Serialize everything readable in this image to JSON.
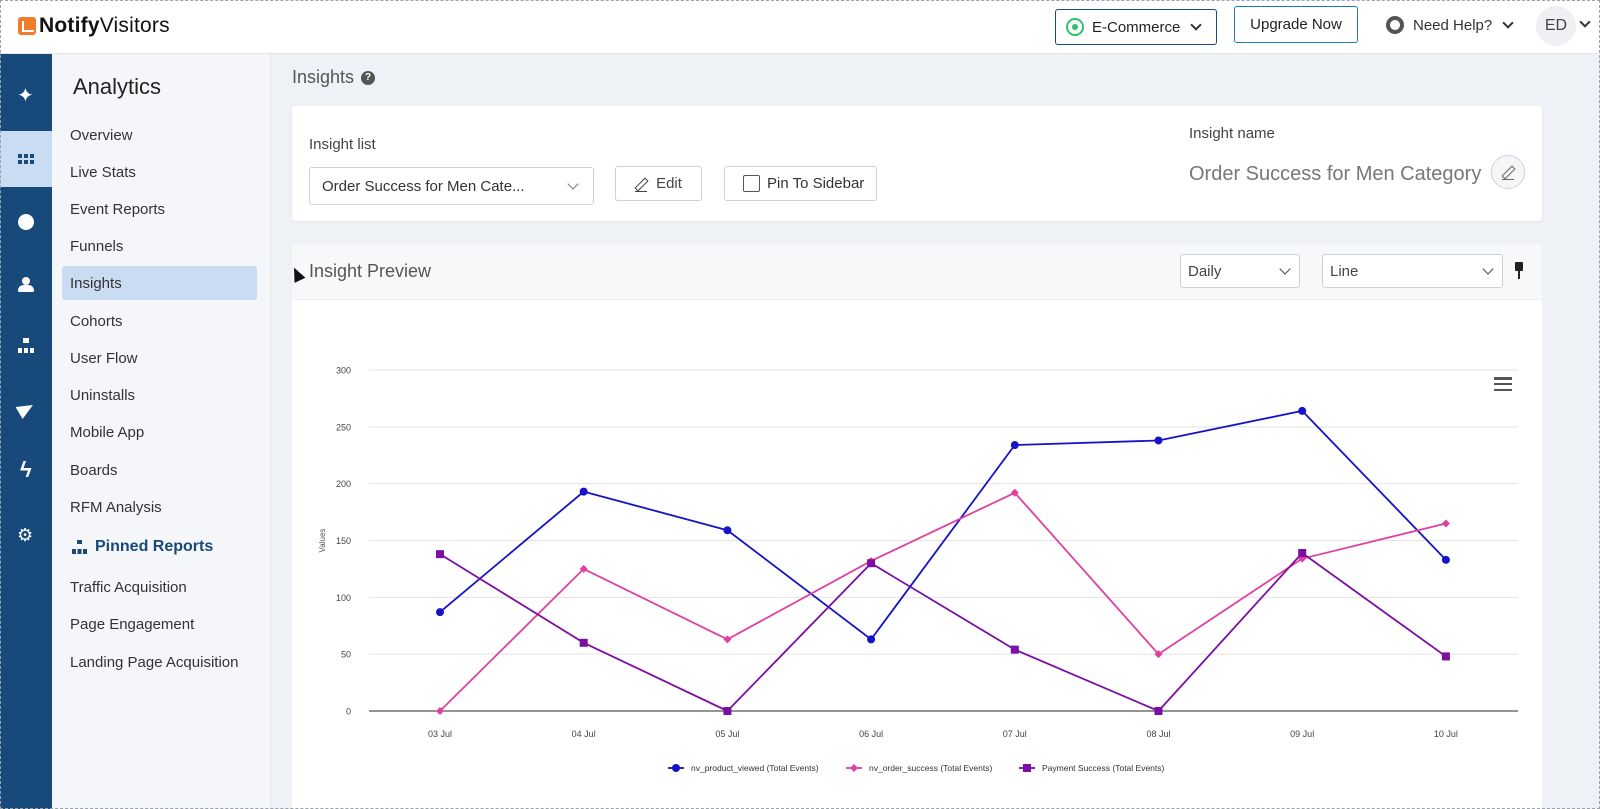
{
  "brand": {
    "name_bold": "Notify",
    "name_light": "Visitors",
    "accent": "#f07c2b"
  },
  "header": {
    "project_label": "E-Commerce",
    "upgrade_label": "Upgrade Now",
    "help_label": "Need Help?",
    "avatar_initials": "ED"
  },
  "rail": {
    "icons": [
      "sparkle-icon",
      "grid-icon",
      "gauge-icon",
      "users-icon",
      "sitemap-icon",
      "send-icon",
      "bolt-icon",
      "gear-icon"
    ],
    "active_index": 1,
    "color": "#17497a"
  },
  "sidebar": {
    "title": "Analytics",
    "items": [
      "Overview",
      "Live Stats",
      "Event Reports",
      "Funnels",
      "Insights",
      "Cohorts",
      "User Flow",
      "Uninstalls",
      "Mobile App",
      "Boards",
      "RFM Analysis"
    ],
    "active_item": "Insights",
    "pinned_heading": "Pinned Reports",
    "pinned_items": [
      "Traffic Acquisition",
      "Page Engagement",
      "Landing Page Acquisition"
    ]
  },
  "page": {
    "title": "Insights",
    "insight_list_label": "Insight list",
    "insight_list_value": "Order Success for Men Cate...",
    "edit_label": "Edit",
    "pin_label": "Pin To Sidebar",
    "insight_name_label": "Insight name",
    "insight_name_value": "Order Success for Men Category"
  },
  "preview": {
    "title": "Insight Preview",
    "interval_value": "Daily",
    "chart_type_value": "Line"
  },
  "chart_data": {
    "type": "line",
    "title": "",
    "xlabel": "",
    "ylabel": "Values",
    "ylim": [
      0,
      300
    ],
    "yticks": [
      0,
      50,
      100,
      150,
      200,
      250,
      300
    ],
    "grid": true,
    "legend_position": "bottom",
    "categories": [
      "03 Jul",
      "04 Jul",
      "05 Jul",
      "06 Jul",
      "07 Jul",
      "08 Jul",
      "09 Jul",
      "10 Jul"
    ],
    "series": [
      {
        "name": "nv_product_viewed (Total Events)",
        "color": "#1414c8",
        "marker": "circle",
        "values": [
          87,
          193,
          159,
          63,
          234,
          238,
          264,
          133
        ]
      },
      {
        "name": "nv_order_success (Total Events)",
        "color": "#e040a0",
        "marker": "diamond",
        "values": [
          0,
          125,
          63,
          132,
          192,
          50,
          134,
          165
        ]
      },
      {
        "name": "Payment Success (Total Events)",
        "color": "#7b0fa3",
        "marker": "square",
        "values": [
          138,
          60,
          0,
          130,
          54,
          0,
          139,
          48
        ]
      }
    ]
  }
}
